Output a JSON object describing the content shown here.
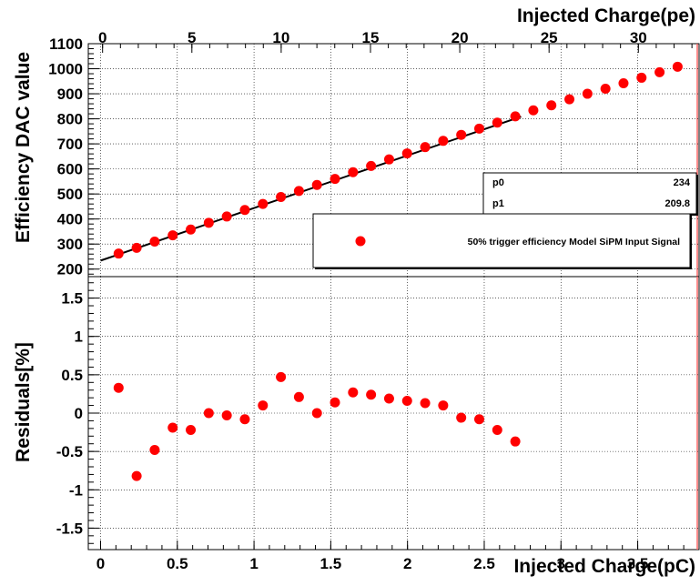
{
  "chart_data": [
    {
      "type": "scatter",
      "panel": "top",
      "xlabel": "Injected Charge(pe)",
      "ylabel": "Efficiency DAC value",
      "xlim_top_axis": [
        -0.8,
        33.4
      ],
      "ylim": [
        170,
        1100
      ],
      "top_axis_ticks": [
        0,
        5,
        10,
        15,
        20,
        25,
        30
      ],
      "y_ticks": [
        200,
        300,
        400,
        500,
        600,
        700,
        800,
        900,
        1000,
        1100
      ],
      "x": [
        0.1175,
        0.235,
        0.3525,
        0.47,
        0.5875,
        0.705,
        0.8225,
        0.94,
        1.0575,
        1.175,
        1.2925,
        1.41,
        1.5275,
        1.645,
        1.7625,
        1.88,
        1.9975,
        2.115,
        2.2325,
        2.35,
        2.4675,
        2.585,
        2.7025,
        2.82,
        2.9375,
        3.055,
        3.1725,
        3.29,
        3.4075,
        3.525,
        3.6425,
        3.76
      ],
      "values": [
        262,
        285,
        310,
        335,
        358,
        385,
        410,
        436,
        460,
        488,
        512,
        536,
        560,
        587,
        612,
        638,
        662,
        687,
        712,
        736,
        761,
        785,
        810,
        834,
        854,
        878,
        900,
        920,
        942,
        964,
        986,
        1008
      ],
      "series_name": "50% trigger efficiency Model SiPM Input Signal",
      "fit": {
        "p0_label": "p0",
        "p0": "234",
        "p1_label": "p1",
        "p1": "209.8",
        "x_range": [
          0.0,
          2.74
        ]
      },
      "marker_color": "#ff0000",
      "line_color": "#000000"
    },
    {
      "type": "scatter",
      "panel": "bottom",
      "xlabel": "Injected Charge(pC)",
      "ylabel": "Residuals[%]",
      "xlim": [
        -0.08,
        3.9
      ],
      "ylim": [
        -1.78,
        1.78
      ],
      "x_ticks": [
        "0",
        "0.5",
        "1",
        "1.5",
        "2",
        "2.5",
        "3",
        "3.5"
      ],
      "y_ticks": [
        "-1.5",
        "-1",
        "-0.5",
        "0",
        "0.5",
        "1",
        "1.5"
      ],
      "x": [
        0.1175,
        0.235,
        0.3525,
        0.47,
        0.5875,
        0.705,
        0.8225,
        0.94,
        1.0575,
        1.175,
        1.2925,
        1.41,
        1.5275,
        1.645,
        1.7625,
        1.88,
        1.9975,
        2.115,
        2.2325,
        2.35,
        2.4675,
        2.585,
        2.7025
      ],
      "values": [
        0.33,
        -0.82,
        -0.48,
        -0.19,
        -0.22,
        0.0,
        -0.03,
        -0.08,
        0.1,
        0.47,
        0.21,
        0.0,
        0.14,
        0.27,
        0.24,
        0.19,
        0.16,
        0.13,
        0.1,
        -0.06,
        -0.08,
        -0.22,
        -0.37
      ],
      "marker_color": "#ff0000"
    }
  ]
}
